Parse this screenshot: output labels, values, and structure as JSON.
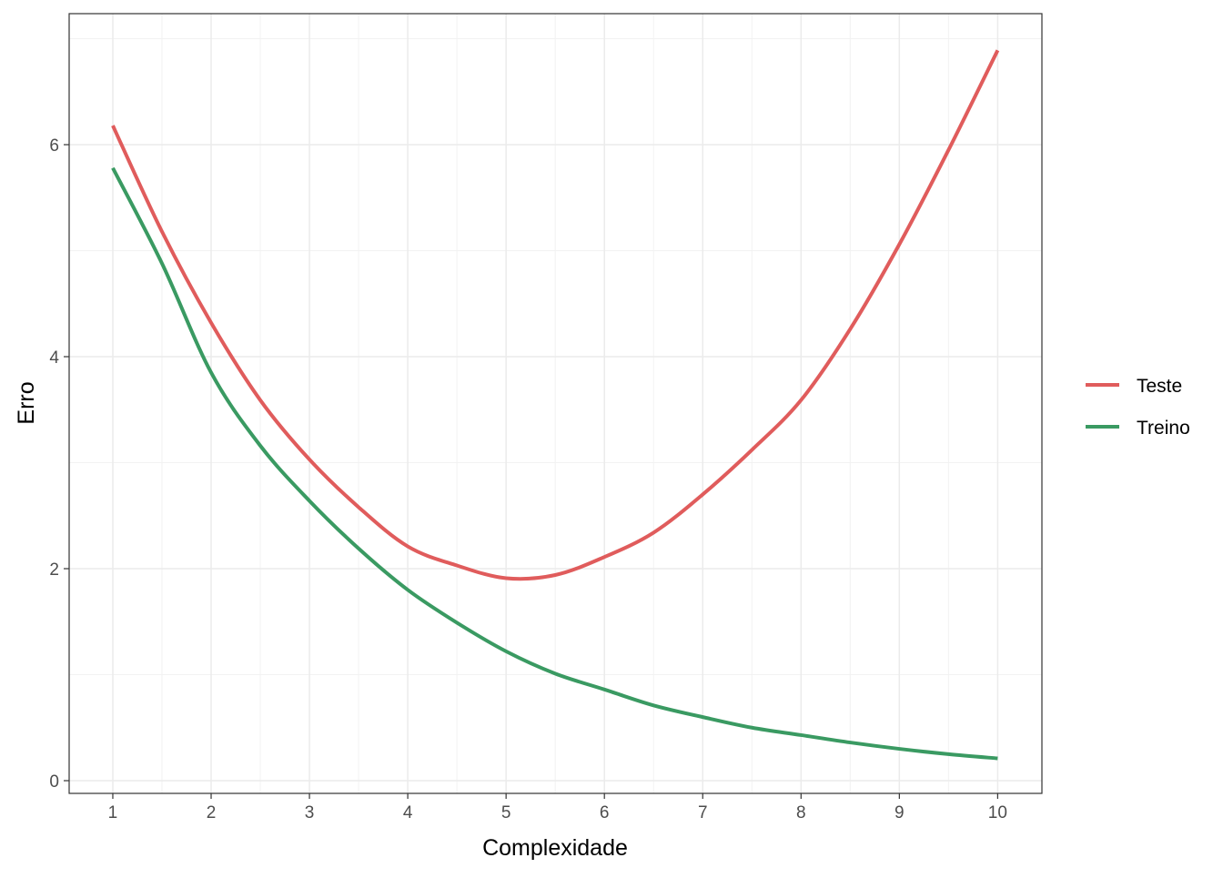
{
  "chart_data": {
    "type": "line",
    "title": "",
    "xlabel": "Complexidade",
    "ylabel": "Erro",
    "xlim": [
      0.556,
      10.45
    ],
    "ylim": [
      -0.12,
      7.236
    ],
    "x_ticks": [
      1,
      2,
      3,
      4,
      5,
      6,
      7,
      8,
      9,
      10
    ],
    "y_ticks": [
      0,
      2,
      4,
      6
    ],
    "grid": true,
    "legend_position": "right",
    "x": [
      1,
      1.5,
      2,
      2.5,
      3,
      3.5,
      4,
      4.5,
      5,
      5.5,
      6,
      6.5,
      7,
      7.5,
      8,
      8.5,
      9,
      9.5,
      10
    ],
    "series": [
      {
        "name": "Teste",
        "color": "#e05c5c",
        "values": [
          6.18,
          5.18,
          4.32,
          3.59,
          3.03,
          2.58,
          2.21,
          2.03,
          1.91,
          1.94,
          2.11,
          2.34,
          2.7,
          3.12,
          3.59,
          4.26,
          5.06,
          5.95,
          6.89
        ]
      },
      {
        "name": "Treino",
        "color": "#3a9a62",
        "values": [
          5.78,
          4.88,
          3.85,
          3.16,
          2.64,
          2.19,
          1.8,
          1.49,
          1.22,
          1.01,
          0.86,
          0.71,
          0.6,
          0.5,
          0.43,
          0.36,
          0.3,
          0.25,
          0.21
        ]
      }
    ]
  }
}
